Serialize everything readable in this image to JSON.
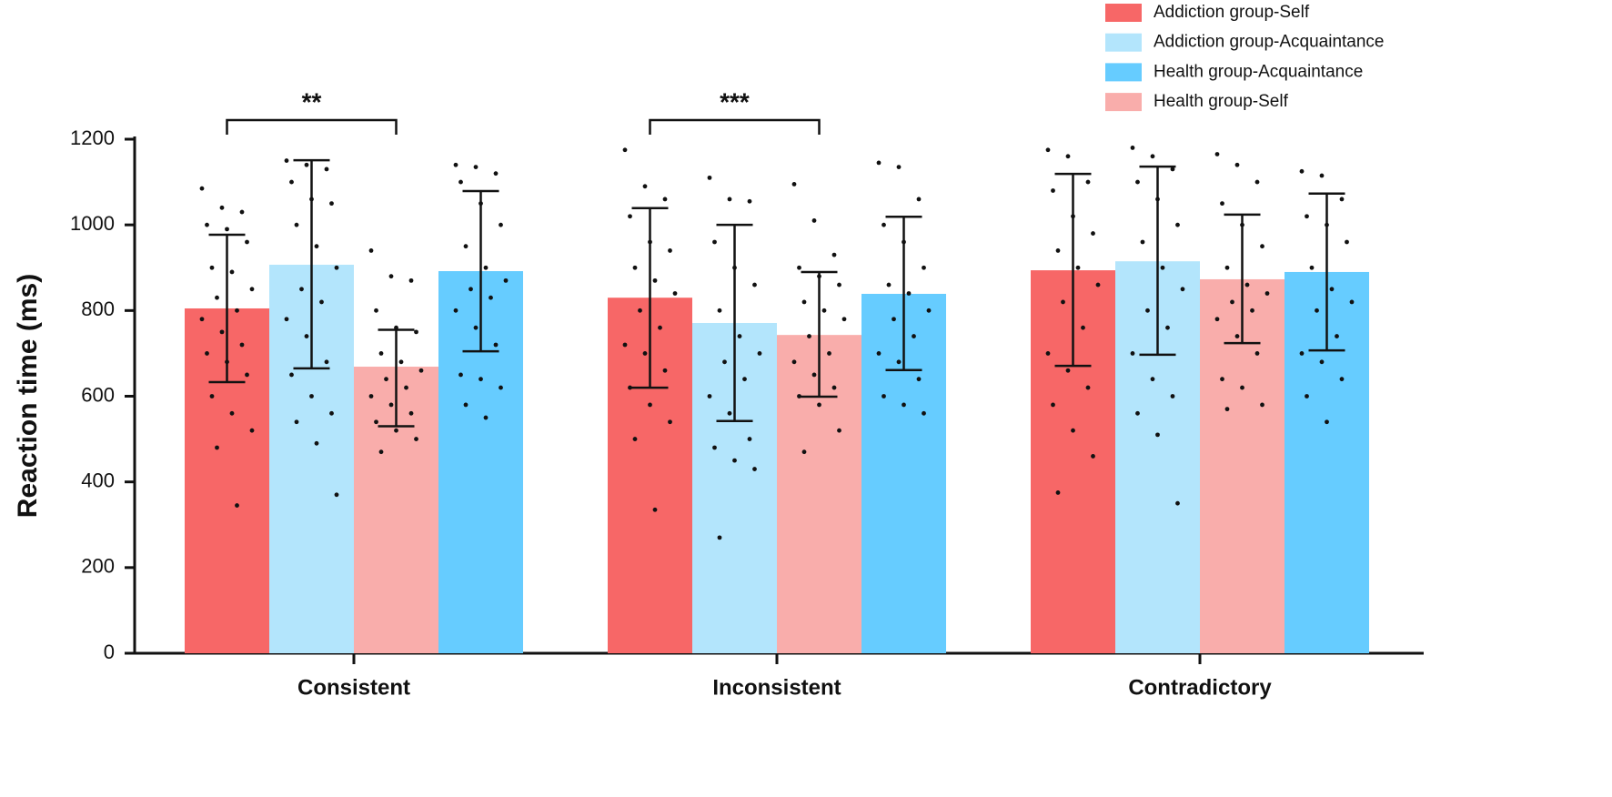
{
  "chart_data": {
    "type": "bar",
    "y_label": "Reaction time  (ms)",
    "categories": [
      "Consistent",
      "Inconsistent",
      "Contradictory"
    ],
    "ylim": [
      0,
      1200
    ],
    "yticks": [
      0,
      200,
      400,
      600,
      800,
      1000,
      1200
    ],
    "annotations": [
      "**",
      "***"
    ],
    "series": [
      {
        "name": "Addiction group-Self",
        "color": "#f76767",
        "values": [
          805,
          830,
          894
        ],
        "lower": [
          633,
          620,
          671
        ],
        "upper": [
          977,
          1039,
          1119
        ],
        "points": [
          [
            1085,
            1040,
            1030,
            1000,
            990,
            960,
            900,
            890,
            850,
            830,
            800,
            780,
            750,
            720,
            700,
            680,
            650,
            600,
            560,
            520,
            480,
            345
          ],
          [
            1175,
            1090,
            1060,
            1020,
            960,
            940,
            900,
            870,
            840,
            800,
            760,
            720,
            700,
            660,
            620,
            580,
            540,
            500,
            335
          ],
          [
            1175,
            1160,
            1100,
            1080,
            1020,
            980,
            940,
            900,
            860,
            820,
            760,
            700,
            660,
            620,
            580,
            520,
            460,
            375
          ]
        ]
      },
      {
        "name": "Addiction group-Acquaintance",
        "color": "#b3e5fc",
        "values": [
          907,
          771,
          915
        ],
        "lower": [
          665,
          542,
          697
        ],
        "upper": [
          1151,
          1000,
          1136
        ],
        "points": [
          [
            1150,
            1140,
            1130,
            1100,
            1060,
            1050,
            1000,
            950,
            900,
            850,
            820,
            780,
            740,
            680,
            650,
            600,
            560,
            540,
            490,
            370
          ],
          [
            1110,
            1060,
            1055,
            960,
            900,
            860,
            800,
            740,
            700,
            680,
            640,
            600,
            560,
            500,
            480,
            450,
            430,
            270
          ],
          [
            1180,
            1160,
            1130,
            1100,
            1060,
            1000,
            960,
            900,
            850,
            800,
            760,
            700,
            640,
            600,
            560,
            510,
            350
          ]
        ]
      },
      {
        "name": "Health group-Self",
        "color": "#f9adab",
        "values": [
          669,
          743,
          873
        ],
        "lower": [
          530,
          599,
          724
        ],
        "upper": [
          755,
          890,
          1024
        ],
        "points": [
          [
            940,
            880,
            870,
            800,
            760,
            750,
            700,
            680,
            660,
            640,
            620,
            600,
            580,
            560,
            540,
            520,
            500,
            470
          ],
          [
            1095,
            1010,
            930,
            900,
            880,
            860,
            820,
            800,
            780,
            740,
            700,
            680,
            650,
            620,
            600,
            580,
            520,
            470
          ],
          [
            1165,
            1140,
            1100,
            1050,
            1000,
            950,
            900,
            860,
            840,
            820,
            800,
            780,
            740,
            700,
            640,
            620,
            580,
            570
          ]
        ]
      },
      {
        "name": "Health group-Acquaintance",
        "color": "#66ccff",
        "values": [
          892,
          839,
          890
        ],
        "lower": [
          705,
          661,
          707
        ],
        "upper": [
          1079,
          1019,
          1073
        ],
        "points": [
          [
            1140,
            1135,
            1120,
            1100,
            1050,
            1000,
            950,
            900,
            870,
            850,
            830,
            800,
            760,
            720,
            650,
            640,
            620,
            580,
            550
          ],
          [
            1145,
            1135,
            1060,
            1000,
            960,
            900,
            860,
            840,
            800,
            780,
            740,
            700,
            680,
            640,
            600,
            580,
            560
          ],
          [
            1125,
            1115,
            1060,
            1020,
            1000,
            960,
            900,
            850,
            820,
            800,
            740,
            700,
            680,
            640,
            600,
            540
          ]
        ]
      }
    ]
  }
}
